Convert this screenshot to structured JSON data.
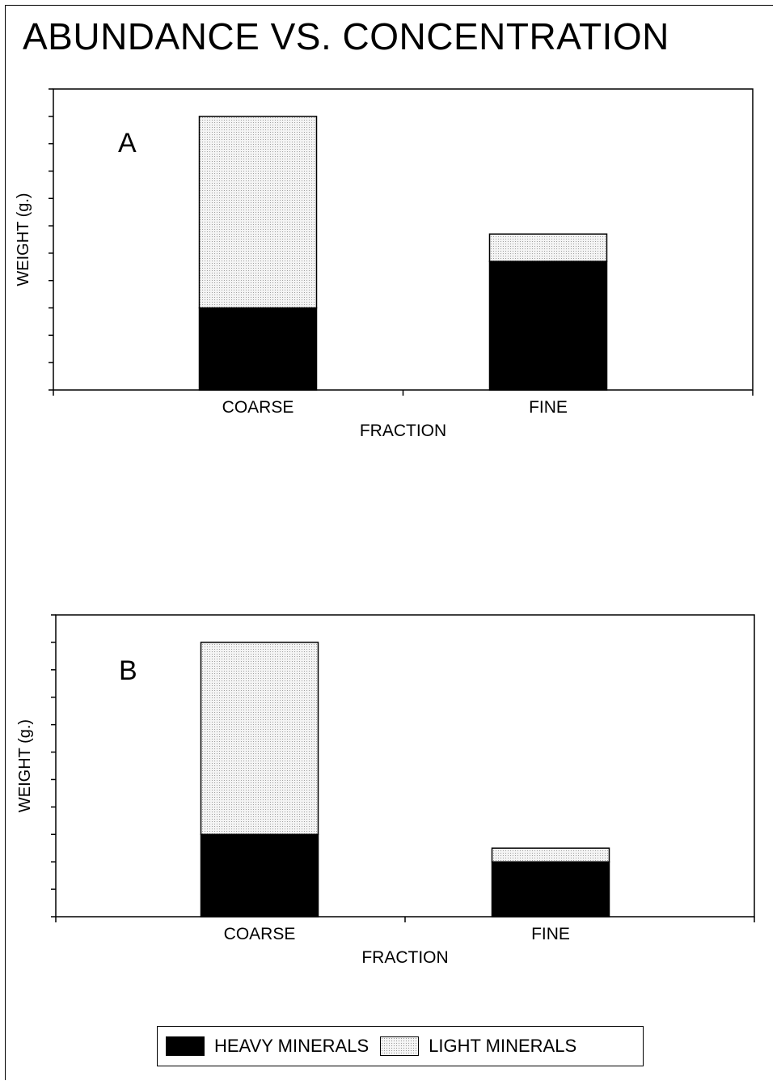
{
  "title": "ABUNDANCE VS. CONCENTRATION",
  "colors": {
    "heavy": "#000000",
    "light_fill": "#f4f4f4",
    "light_dot": "#8c8c8c"
  },
  "legend": {
    "heavy_label": "HEAVY MINERALS",
    "light_label": "LIGHT MINERALS"
  },
  "chart_data": [
    {
      "type": "bar",
      "stacked": true,
      "panel_label": "A",
      "categories": [
        "COARSE",
        "FINE"
      ],
      "series": [
        {
          "name": "HEAVY MINERALS",
          "values": [
            3,
            4.7
          ]
        },
        {
          "name": "LIGHT MINERALS",
          "values": [
            7,
            1
          ]
        }
      ],
      "xlabel": "FRACTION",
      "ylabel": "WEIGHT (g.)",
      "ylim": [
        0,
        11
      ],
      "y_ticks": 11,
      "grid": false
    },
    {
      "type": "bar",
      "stacked": true,
      "panel_label": "B",
      "categories": [
        "COARSE",
        "FINE"
      ],
      "series": [
        {
          "name": "HEAVY MINERALS",
          "values": [
            3,
            2
          ]
        },
        {
          "name": "LIGHT MINERALS",
          "values": [
            7,
            0.5
          ]
        }
      ],
      "xlabel": "FRACTION",
      "ylabel": "WEIGHT (g.)",
      "ylim": [
        0,
        11
      ],
      "y_ticks": 11,
      "grid": false
    }
  ]
}
